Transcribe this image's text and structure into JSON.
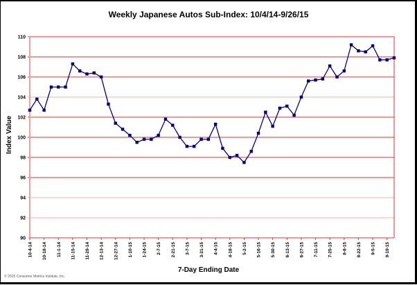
{
  "chart_data": {
    "type": "line",
    "title": "Weekly Japanese Autos Sub-Index: 10/4/14-9/26/15",
    "xlabel": "7-Day Ending Date",
    "ylabel": "Index Value",
    "ylim": [
      90,
      110
    ],
    "yticks": [
      90,
      92,
      94,
      96,
      98,
      100,
      102,
      104,
      106,
      108,
      110
    ],
    "grid": true,
    "legend": null,
    "x_tick_labels": [
      "10-4-14",
      "10-18-14",
      "11-1-14",
      "11-15-14",
      "11-29-14",
      "12-13-14",
      "12-27-14",
      "1-10-15",
      "1-24-15",
      "2-7-15",
      "2-21-15",
      "3-7-15",
      "3-21-15",
      "4-4-15",
      "4-18-15",
      "5-2-15",
      "5-16-15",
      "5-30-15",
      "6-13-15",
      "6-27-15",
      "7-11-15",
      "7-25-15",
      "8-8-15",
      "8-22-15",
      "9-5-15",
      "9-19-15"
    ],
    "series": [
      {
        "name": "Japanese Autos Sub-Index",
        "color": "#000080",
        "values": [
          102.7,
          103.8,
          102.7,
          105.0,
          105.0,
          105.0,
          107.3,
          106.6,
          106.3,
          106.4,
          106.0,
          103.3,
          101.4,
          100.8,
          100.2,
          99.5,
          99.8,
          99.8,
          100.2,
          101.8,
          101.2,
          100.0,
          99.1,
          99.1,
          99.8,
          99.8,
          101.3,
          98.9,
          98.0,
          98.2,
          97.5,
          98.6,
          100.4,
          102.5,
          101.1,
          102.9,
          103.1,
          102.2,
          104.0,
          105.6,
          105.7,
          105.8,
          107.1,
          106.0,
          106.6,
          109.2,
          108.6,
          108.5,
          109.1,
          107.7,
          107.7,
          107.9
        ]
      }
    ]
  },
  "footer": {
    "copyright": "© 2015 Consumer Metrics Institute, Inc."
  },
  "colors": {
    "gridline": "#e03030",
    "axis": "#ff9999",
    "series": "#000080"
  }
}
